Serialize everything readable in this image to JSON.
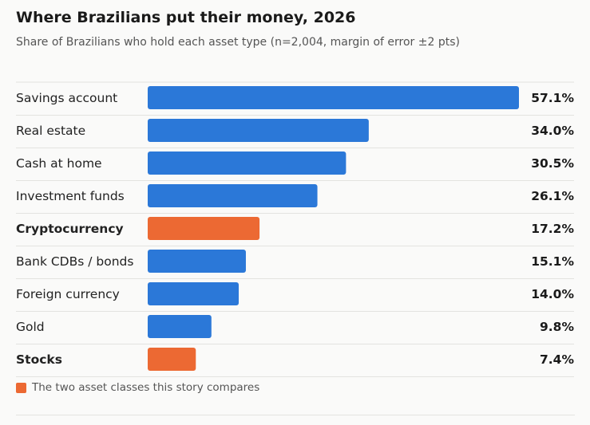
{
  "chart_data": {
    "type": "bar",
    "orientation": "horizontal",
    "title": "Where Brazilians put their money, 2026",
    "subtitle": "Share of Brazilians who hold each asset type (n=2,004, margin of error ±2 pts)",
    "categories": [
      "Savings account",
      "Real estate",
      "Cash at home",
      "Investment funds",
      "Cryptocurrency",
      "Bank CDBs / bonds",
      "Foreign currency",
      "Gold",
      "Stocks"
    ],
    "values": [
      57.1,
      34.0,
      30.5,
      26.1,
      17.2,
      15.1,
      14.0,
      9.8,
      7.4
    ],
    "value_labels": [
      "57.1%",
      "34.0%",
      "30.5%",
      "26.1%",
      "17.2%",
      "15.1%",
      "14.0%",
      "9.8%",
      "7.4%"
    ],
    "highlighted": [
      "Cryptocurrency",
      "Stocks"
    ],
    "xlim": [
      0,
      57.1
    ],
    "grid": false,
    "legend": {
      "position": "bottom-left",
      "label": "The two asset classes this story compares"
    },
    "colors": {
      "default": "#2b78d8",
      "highlight": "#ec6933",
      "rule": "#e3e3e0"
    }
  }
}
